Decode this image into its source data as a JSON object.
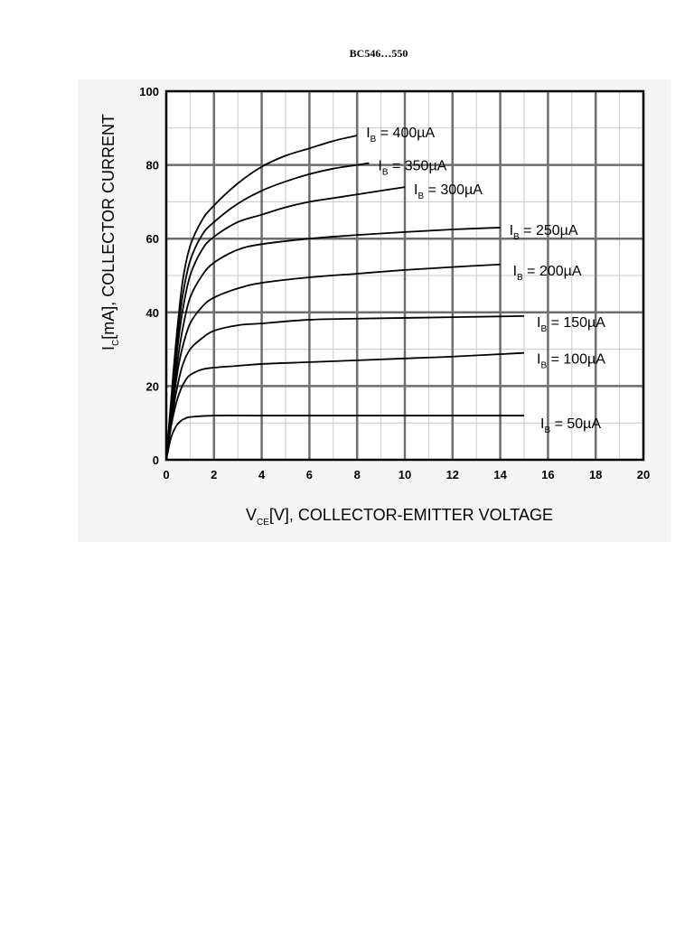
{
  "header": {
    "title": "BC546…550"
  },
  "chart_data": {
    "type": "line",
    "title": "",
    "xlabel": {
      "main": "V",
      "sub": "CE",
      "rest": "[V], COLLECTOR-EMITTER VOLTAGE"
    },
    "ylabel": {
      "main": "I",
      "sub": "C",
      "rest": "[mA], COLLECTOR CURRENT"
    },
    "xlim": [
      0,
      20
    ],
    "ylim": [
      0,
      100
    ],
    "xticks": [
      "0",
      "2",
      "4",
      "6",
      "8",
      "10",
      "12",
      "14",
      "16",
      "18",
      "20"
    ],
    "yticks": [
      "0",
      "20",
      "40",
      "60",
      "80",
      "100"
    ],
    "grid": true,
    "series": [
      {
        "name": "I_B = 50µA",
        "label": {
          "pre": "I",
          "sub": "B",
          "post": " = 50µA"
        },
        "x": [
          0,
          0.2,
          0.4,
          0.6,
          0.8,
          1.0,
          2,
          4,
          8,
          15
        ],
        "y": [
          0,
          6,
          9,
          10.5,
          11.2,
          11.6,
          12,
          12,
          12,
          12
        ]
      },
      {
        "name": "I_B = 100µA",
        "label": {
          "pre": "I",
          "sub": "B",
          "post": " = 100µA"
        },
        "x": [
          0,
          0.2,
          0.4,
          0.6,
          0.8,
          1.0,
          1.5,
          2,
          3,
          4,
          6,
          8,
          10,
          12,
          15
        ],
        "y": [
          0,
          9,
          15,
          19,
          21.5,
          23,
          24.5,
          25,
          25.5,
          26,
          26.5,
          27,
          27.5,
          28,
          29
        ]
      },
      {
        "name": "I_B = 150µA",
        "label": {
          "pre": "I",
          "sub": "B",
          "post": " = 150µA"
        },
        "x": [
          0,
          0.3,
          0.5,
          0.7,
          1.0,
          1.5,
          2,
          3,
          4,
          6,
          8,
          10,
          12,
          15
        ],
        "y": [
          0,
          14,
          21,
          26,
          30,
          33,
          35,
          36.5,
          37,
          38,
          38.3,
          38.5,
          38.7,
          39
        ]
      },
      {
        "name": "I_B = 200µA",
        "label": {
          "pre": "I",
          "sub": "B",
          "post": " = 200µA"
        },
        "x": [
          0,
          0.3,
          0.5,
          0.7,
          1.0,
          1.5,
          2,
          3,
          4,
          6,
          8,
          10,
          12,
          14
        ],
        "y": [
          0,
          16,
          25,
          31,
          37,
          41.5,
          44,
          46.5,
          48,
          49.5,
          50.5,
          51.5,
          52.3,
          53
        ]
      },
      {
        "name": "I_B = 250µA",
        "label": {
          "pre": "I",
          "sub": "B",
          "post": " = 250µA"
        },
        "x": [
          0,
          0.3,
          0.5,
          0.7,
          1.0,
          1.5,
          2,
          3,
          4,
          6,
          8,
          10,
          12,
          14
        ],
        "y": [
          0,
          18,
          28,
          36,
          44,
          50,
          53.5,
          57,
          58.5,
          60,
          61,
          61.8,
          62.5,
          63
        ]
      },
      {
        "name": "I_B = 300µA",
        "label": {
          "pre": "I",
          "sub": "B",
          "post": " = 300µA"
        },
        "x": [
          0,
          0.3,
          0.5,
          0.7,
          1.0,
          1.5,
          2,
          3,
          4,
          5,
          6,
          7,
          8,
          9,
          10
        ],
        "y": [
          0,
          20,
          32,
          41,
          50,
          57,
          60.5,
          64.5,
          66.5,
          68.5,
          70,
          71,
          72,
          73,
          74
        ]
      },
      {
        "name": "I_B = 350µA",
        "label": {
          "pre": "I",
          "sub": "B",
          "post": " = 350µA"
        },
        "x": [
          0,
          0.3,
          0.5,
          0.7,
          1.0,
          1.5,
          2,
          3,
          4,
          5,
          6,
          7,
          8,
          8.5
        ],
        "y": [
          0,
          22,
          35,
          45,
          54,
          61,
          64.5,
          69.5,
          73,
          75.5,
          77.5,
          79,
          80,
          80.5
        ]
      },
      {
        "name": "I_B = 400µA",
        "label": {
          "pre": "I",
          "sub": "B",
          "post": " = 400µA"
        },
        "x": [
          0,
          0.3,
          0.5,
          0.7,
          1.0,
          1.5,
          2,
          3,
          4,
          5,
          6,
          7,
          8
        ],
        "y": [
          0,
          24,
          38,
          49,
          58,
          65,
          69,
          75,
          79.5,
          82.5,
          84.5,
          86.5,
          88
        ]
      }
    ]
  }
}
